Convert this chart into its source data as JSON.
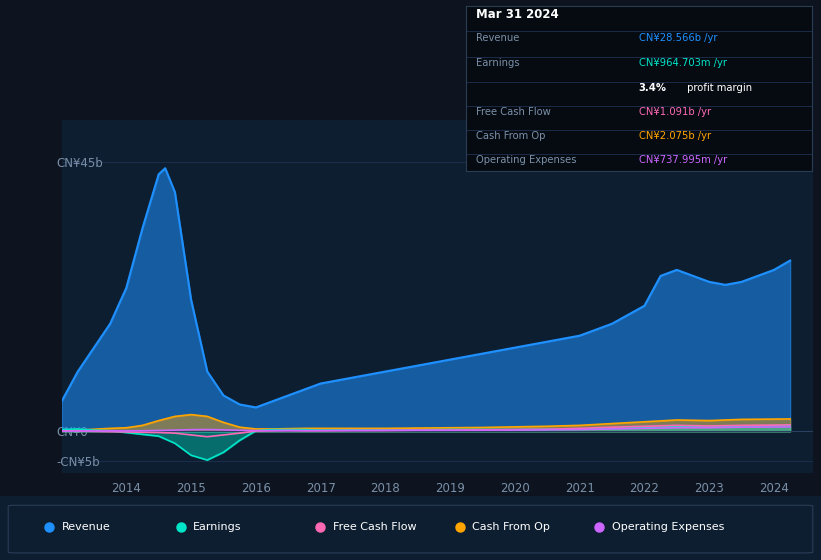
{
  "background_color": "#0d1420",
  "plot_bg_color": "#0d1e30",
  "xlim": [
    2013.0,
    2024.6
  ],
  "ylim": [
    -7000000000.0,
    52000000000.0
  ],
  "xticks": [
    2014,
    2015,
    2016,
    2017,
    2018,
    2019,
    2020,
    2021,
    2022,
    2023,
    2024
  ],
  "colors": {
    "revenue": "#1e90ff",
    "earnings": "#00e5c8",
    "free_cash_flow": "#ff69b4",
    "cash_from_op": "#ffa500",
    "operating_expenses": "#cc66ff"
  },
  "legend": [
    {
      "label": "Revenue",
      "color": "#1e90ff"
    },
    {
      "label": "Earnings",
      "color": "#00e5c8"
    },
    {
      "label": "Free Cash Flow",
      "color": "#ff69b4"
    },
    {
      "label": "Cash From Op",
      "color": "#ffa500"
    },
    {
      "label": "Operating Expenses",
      "color": "#cc66ff"
    }
  ],
  "revenue": [
    [
      2013.0,
      5000000000.0
    ],
    [
      2013.25,
      10000000000.0
    ],
    [
      2013.5,
      14000000000.0
    ],
    [
      2013.75,
      18000000000.0
    ],
    [
      2014.0,
      24000000000.0
    ],
    [
      2014.25,
      34000000000.0
    ],
    [
      2014.5,
      43000000000.0
    ],
    [
      2014.6,
      44000000000.0
    ],
    [
      2014.75,
      40000000000.0
    ],
    [
      2015.0,
      22000000000.0
    ],
    [
      2015.25,
      10000000000.0
    ],
    [
      2015.5,
      6000000000.0
    ],
    [
      2015.75,
      4500000000.0
    ],
    [
      2016.0,
      4000000000.0
    ],
    [
      2016.25,
      5000000000.0
    ],
    [
      2016.5,
      6000000000.0
    ],
    [
      2016.75,
      7000000000.0
    ],
    [
      2017.0,
      8000000000.0
    ],
    [
      2017.5,
      9000000000.0
    ],
    [
      2018.0,
      10000000000.0
    ],
    [
      2018.5,
      11000000000.0
    ],
    [
      2019.0,
      12000000000.0
    ],
    [
      2019.5,
      13000000000.0
    ],
    [
      2020.0,
      14000000000.0
    ],
    [
      2020.5,
      15000000000.0
    ],
    [
      2021.0,
      16000000000.0
    ],
    [
      2021.5,
      18000000000.0
    ],
    [
      2022.0,
      21000000000.0
    ],
    [
      2022.25,
      26000000000.0
    ],
    [
      2022.5,
      27000000000.0
    ],
    [
      2022.75,
      26000000000.0
    ],
    [
      2023.0,
      25000000000.0
    ],
    [
      2023.25,
      24500000000.0
    ],
    [
      2023.5,
      25000000000.0
    ],
    [
      2023.75,
      26000000000.0
    ],
    [
      2024.0,
      27000000000.0
    ],
    [
      2024.25,
      28566000000.0
    ]
  ],
  "earnings": [
    [
      2013.0,
      300000000.0
    ],
    [
      2013.25,
      400000000.0
    ],
    [
      2013.5,
      200000000.0
    ],
    [
      2013.75,
      100000000.0
    ],
    [
      2014.0,
      -200000000.0
    ],
    [
      2014.25,
      -500000000.0
    ],
    [
      2014.5,
      -800000000.0
    ],
    [
      2014.75,
      -2000000000.0
    ],
    [
      2015.0,
      -4000000000.0
    ],
    [
      2015.25,
      -4800000000.0
    ],
    [
      2015.5,
      -3500000000.0
    ],
    [
      2015.75,
      -1500000000.0
    ],
    [
      2016.0,
      100000000.0
    ],
    [
      2016.25,
      300000000.0
    ],
    [
      2016.5,
      300000000.0
    ],
    [
      2016.75,
      300000000.0
    ],
    [
      2017.0,
      200000000.0
    ],
    [
      2017.5,
      250000000.0
    ],
    [
      2018.0,
      200000000.0
    ],
    [
      2018.5,
      250000000.0
    ],
    [
      2019.0,
      300000000.0
    ],
    [
      2019.5,
      300000000.0
    ],
    [
      2020.0,
      300000000.0
    ],
    [
      2020.5,
      350000000.0
    ],
    [
      2021.0,
      400000000.0
    ],
    [
      2021.5,
      500000000.0
    ],
    [
      2022.0,
      600000000.0
    ],
    [
      2022.5,
      800000000.0
    ],
    [
      2023.0,
      750000000.0
    ],
    [
      2023.5,
      900000000.0
    ],
    [
      2024.0,
      950000000.0
    ],
    [
      2024.25,
      964700000.0
    ]
  ],
  "free_cash_flow": [
    [
      2013.0,
      50000000.0
    ],
    [
      2013.25,
      50000000.0
    ],
    [
      2013.5,
      0.0
    ],
    [
      2013.75,
      -50000000.0
    ],
    [
      2014.0,
      -100000000.0
    ],
    [
      2014.25,
      -150000000.0
    ],
    [
      2014.5,
      -200000000.0
    ],
    [
      2014.75,
      -300000000.0
    ],
    [
      2015.0,
      -600000000.0
    ],
    [
      2015.25,
      -900000000.0
    ],
    [
      2015.5,
      -600000000.0
    ],
    [
      2015.75,
      -300000000.0
    ],
    [
      2016.0,
      50000000.0
    ],
    [
      2016.25,
      100000000.0
    ],
    [
      2016.5,
      150000000.0
    ],
    [
      2016.75,
      100000000.0
    ],
    [
      2017.0,
      100000000.0
    ],
    [
      2017.5,
      150000000.0
    ],
    [
      2018.0,
      150000000.0
    ],
    [
      2018.5,
      200000000.0
    ],
    [
      2019.0,
      200000000.0
    ],
    [
      2019.5,
      250000000.0
    ],
    [
      2020.0,
      300000000.0
    ],
    [
      2020.5,
      350000000.0
    ],
    [
      2021.0,
      500000000.0
    ],
    [
      2021.5,
      700000000.0
    ],
    [
      2022.0,
      850000000.0
    ],
    [
      2022.5,
      1000000000.0
    ],
    [
      2023.0,
      900000000.0
    ],
    [
      2023.5,
      1000000000.0
    ],
    [
      2024.0,
      1050000000.0
    ],
    [
      2024.25,
      1091000000.0
    ]
  ],
  "cash_from_op": [
    [
      2013.0,
      100000000.0
    ],
    [
      2013.25,
      200000000.0
    ],
    [
      2013.5,
      350000000.0
    ],
    [
      2013.75,
      500000000.0
    ],
    [
      2014.0,
      600000000.0
    ],
    [
      2014.25,
      1000000000.0
    ],
    [
      2014.5,
      1800000000.0
    ],
    [
      2014.75,
      2500000000.0
    ],
    [
      2015.0,
      2800000000.0
    ],
    [
      2015.25,
      2500000000.0
    ],
    [
      2015.5,
      1500000000.0
    ],
    [
      2015.75,
      700000000.0
    ],
    [
      2016.0,
      400000000.0
    ],
    [
      2016.25,
      400000000.0
    ],
    [
      2016.5,
      450000000.0
    ],
    [
      2016.75,
      500000000.0
    ],
    [
      2017.0,
      500000000.0
    ],
    [
      2017.5,
      500000000.0
    ],
    [
      2018.0,
      500000000.0
    ],
    [
      2018.5,
      550000000.0
    ],
    [
      2019.0,
      600000000.0
    ],
    [
      2019.5,
      650000000.0
    ],
    [
      2020.0,
      750000000.0
    ],
    [
      2020.5,
      850000000.0
    ],
    [
      2021.0,
      1000000000.0
    ],
    [
      2021.5,
      1300000000.0
    ],
    [
      2022.0,
      1600000000.0
    ],
    [
      2022.5,
      1900000000.0
    ],
    [
      2023.0,
      1800000000.0
    ],
    [
      2023.5,
      2000000000.0
    ],
    [
      2024.0,
      2050000000.0
    ],
    [
      2024.25,
      2075000000.0
    ]
  ],
  "operating_expenses": [
    [
      2013.0,
      40000000.0
    ],
    [
      2013.25,
      50000000.0
    ],
    [
      2013.5,
      60000000.0
    ],
    [
      2013.75,
      70000000.0
    ],
    [
      2014.0,
      80000000.0
    ],
    [
      2014.25,
      100000000.0
    ],
    [
      2014.5,
      150000000.0
    ],
    [
      2014.75,
      200000000.0
    ],
    [
      2015.0,
      280000000.0
    ],
    [
      2015.25,
      300000000.0
    ],
    [
      2015.5,
      250000000.0
    ],
    [
      2015.75,
      180000000.0
    ],
    [
      2016.0,
      120000000.0
    ],
    [
      2016.25,
      110000000.0
    ],
    [
      2016.5,
      110000000.0
    ],
    [
      2016.75,
      110000000.0
    ],
    [
      2017.0,
      120000000.0
    ],
    [
      2017.5,
      130000000.0
    ],
    [
      2018.0,
      150000000.0
    ],
    [
      2018.5,
      170000000.0
    ],
    [
      2019.0,
      180000000.0
    ],
    [
      2019.5,
      190000000.0
    ],
    [
      2020.0,
      220000000.0
    ],
    [
      2020.5,
      260000000.0
    ],
    [
      2021.0,
      300000000.0
    ],
    [
      2021.5,
      400000000.0
    ],
    [
      2022.0,
      500000000.0
    ],
    [
      2022.5,
      600000000.0
    ],
    [
      2023.0,
      600000000.0
    ],
    [
      2023.5,
      700000000.0
    ],
    [
      2024.0,
      730000000.0
    ],
    [
      2024.25,
      738000000.0
    ]
  ]
}
